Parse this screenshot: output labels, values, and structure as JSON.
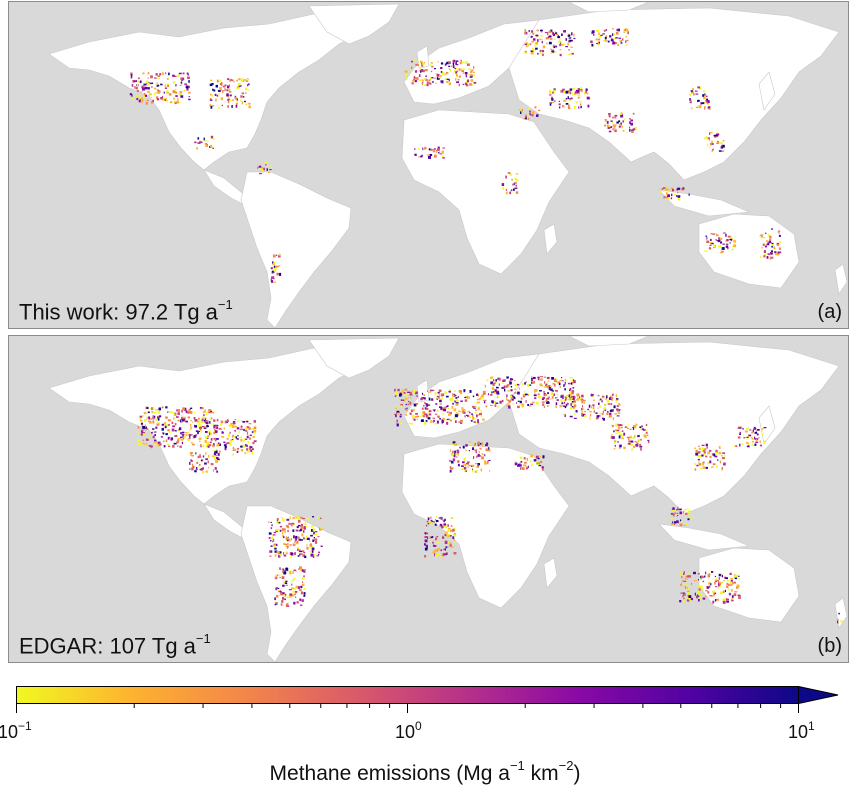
{
  "panels": [
    {
      "id": "a",
      "caption_text": "This work: 97.2 Tg a",
      "caption_exponent": "−1",
      "letter": "(a)"
    },
    {
      "id": "b",
      "caption_text": "EDGAR: 107 Tg a",
      "caption_exponent": "−1",
      "letter": "(b)"
    }
  ],
  "map_colors": {
    "ocean": "#d9d9d9",
    "land": "#ffffff",
    "borders": "#c8c8c8"
  },
  "colorbar": {
    "scale": "log",
    "range": [
      0.1,
      10
    ],
    "extend": "max",
    "colormap": "plasma_r",
    "stops": [
      "#f0f921",
      "#fdb42f",
      "#f48849",
      "#db5c68",
      "#b83289",
      "#8b0aa5",
      "#5302a3",
      "#0d0887"
    ],
    "ticks": [
      {
        "base": "10",
        "exponent": "−1"
      },
      {
        "base": "10",
        "exponent": "0"
      },
      {
        "base": "10",
        "exponent": "1"
      }
    ],
    "title_prefix": "Methane emissions (Mg a",
    "title_exp1": "−1",
    "title_mid": " km",
    "title_exp2": "−2",
    "title_suffix": ")"
  }
}
